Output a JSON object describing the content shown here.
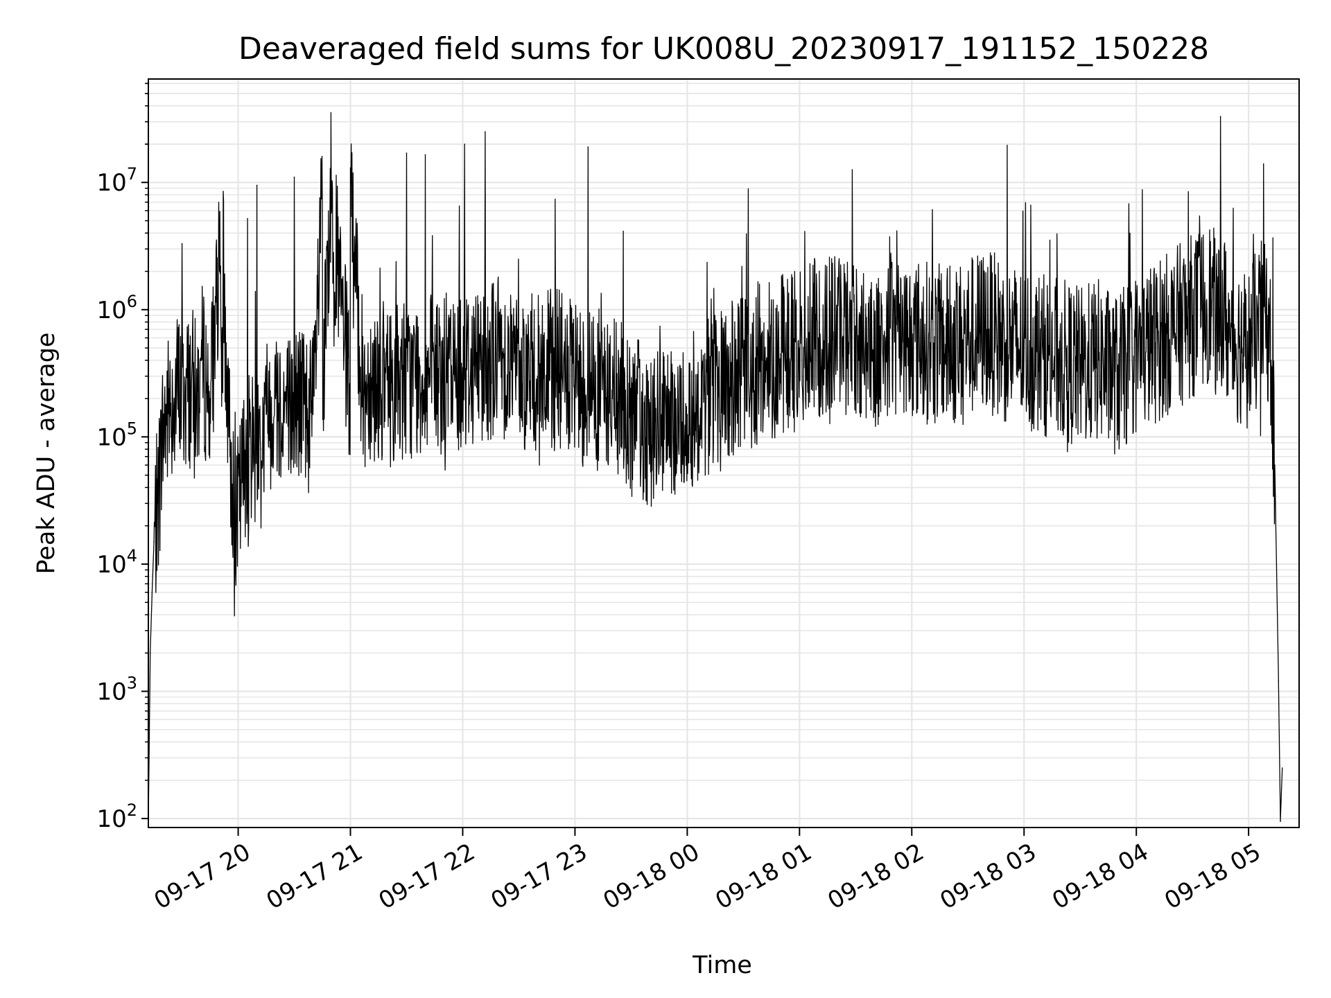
{
  "chart_data": {
    "type": "line",
    "title": "Deaveraged field sums for UK008U_20230917_191152_150228",
    "xlabel": "Time",
    "ylabel": "Peak ADU - average",
    "yscale": "log",
    "grid": true,
    "grid_color": "#e6e6e6",
    "line_color": "#000000",
    "xlim": [
      "2023-09-17 19:12",
      "2023-09-18 05:27"
    ],
    "ylim": [
      85,
      65000000
    ],
    "x_tick_labels": [
      "09-17 20",
      "09-17 21",
      "09-17 22",
      "09-17 23",
      "09-18 00",
      "09-18 01",
      "09-18 02",
      "09-18 03",
      "09-18 04",
      "09-18 05"
    ],
    "y_ticks": [
      {
        "base": "10",
        "exp": "2"
      },
      {
        "base": "10",
        "exp": "3"
      },
      {
        "base": "10",
        "exp": "4"
      },
      {
        "base": "10",
        "exp": "5"
      },
      {
        "base": "10",
        "exp": "6"
      },
      {
        "base": "10",
        "exp": "7"
      }
    ],
    "series": [
      {
        "x": [
          "2023-09-17 19:12",
          "2023-09-17 19:13",
          "2023-09-17 19:14",
          "2023-09-17 19:15",
          "2023-09-17 19:17",
          "2023-09-17 19:20",
          "2023-09-17 19:25",
          "2023-09-17 19:30",
          "2023-09-17 19:35",
          "2023-09-17 19:38",
          "2023-09-17 19:40",
          "2023-09-17 19:45",
          "2023-09-17 19:50",
          "2023-09-17 19:52",
          "2023-09-17 19:55",
          "2023-09-17 19:59",
          "2023-09-17 20:05",
          "2023-09-17 20:06",
          "2023-09-17 20:10",
          "2023-09-17 20:12",
          "2023-09-17 20:15",
          "2023-09-17 20:20",
          "2023-09-17 20:30",
          "2023-09-17 20:40",
          "2023-09-17 20:45",
          "2023-09-17 20:50",
          "2023-09-17 21:00",
          "2023-09-17 21:07",
          "2023-09-17 21:10",
          "2023-09-17 21:20",
          "2023-09-17 21:30",
          "2023-09-17 21:35",
          "2023-09-17 21:40",
          "2023-09-17 21:50",
          "2023-09-17 22:00",
          "2023-09-17 22:01",
          "2023-09-17 22:10",
          "2023-09-17 22:12",
          "2023-09-17 22:20",
          "2023-09-17 22:30",
          "2023-09-17 22:40",
          "2023-09-17 22:50",
          "2023-09-17 23:00",
          "2023-09-17 23:07",
          "2023-09-17 23:10",
          "2023-09-17 23:20",
          "2023-09-17 23:30",
          "2023-09-17 23:40",
          "2023-09-17 23:50",
          "2023-09-18 00:00",
          "2023-09-18 00:05",
          "2023-09-18 00:10",
          "2023-09-18 00:20",
          "2023-09-18 00:30",
          "2023-09-18 00:40",
          "2023-09-18 00:50",
          "2023-09-18 01:00",
          "2023-09-18 01:10",
          "2023-09-18 01:20",
          "2023-09-18 01:30",
          "2023-09-18 01:40",
          "2023-09-18 01:50",
          "2023-09-18 02:00",
          "2023-09-18 02:10",
          "2023-09-18 02:20",
          "2023-09-18 02:30",
          "2023-09-18 02:40",
          "2023-09-18 02:50",
          "2023-09-18 03:00",
          "2023-09-18 03:10",
          "2023-09-18 03:20",
          "2023-09-18 03:30",
          "2023-09-18 03:40",
          "2023-09-18 03:50",
          "2023-09-18 04:00",
          "2023-09-18 04:10",
          "2023-09-18 04:20",
          "2023-09-18 04:30",
          "2023-09-18 04:40",
          "2023-09-18 04:45",
          "2023-09-18 04:50",
          "2023-09-18 05:00",
          "2023-09-18 05:05",
          "2023-09-18 05:08",
          "2023-09-18 05:10",
          "2023-09-18 05:12",
          "2023-09-18 05:14",
          "2023-09-18 05:16",
          "2023-09-18 05:17",
          "2023-09-18 05:18"
        ],
        "y": [
          90,
          2000,
          6000,
          15000,
          30000,
          120000,
          200000,
          3300000,
          250000,
          180000,
          400000,
          200000,
          2000000,
          8500000,
          100000,
          20000,
          5200000,
          100000,
          9500000,
          80000,
          150000,
          200000,
          11000000,
          150000,
          6000000,
          6500000,
          13000000,
          200000,
          300000,
          250000,
          17000000,
          300000,
          16500000,
          300000,
          350000,
          20000000,
          400000,
          25000000,
          450000,
          350000,
          300000,
          350000,
          250000,
          19000000,
          250000,
          200000,
          150000,
          120000,
          100000,
          150000,
          180000,
          200000,
          250000,
          300000,
          400000,
          450000,
          500000,
          600000,
          700000,
          600000,
          500000,
          650000,
          600000,
          550000,
          500000,
          600000,
          700000,
          550000,
          500000,
          450000,
          400000,
          350000,
          400000,
          300000,
          450000,
          550000,
          700000,
          900000,
          1200000,
          33000000,
          600000,
          500000,
          700000,
          14000000,
          900000,
          400000,
          60000,
          1200,
          95,
          250
        ]
      }
    ]
  }
}
